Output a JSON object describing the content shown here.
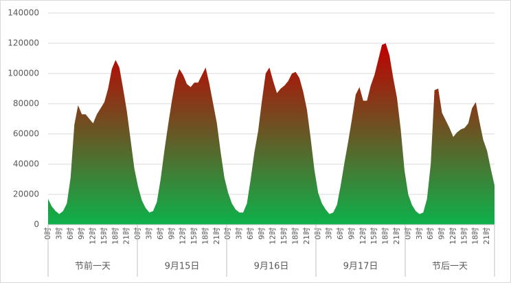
{
  "chart_data": {
    "type": "area",
    "categories": [
      "0时",
      null,
      null,
      "3时",
      null,
      null,
      "6时",
      null,
      null,
      "9时",
      null,
      null,
      "12时",
      null,
      null,
      "15时",
      null,
      null,
      "18时",
      null,
      null,
      "21时",
      null,
      null,
      "0时",
      null,
      null,
      "3时",
      null,
      null,
      "6时",
      null,
      null,
      "9时",
      null,
      null,
      "12时",
      null,
      null,
      "15时",
      null,
      null,
      "18时",
      null,
      null,
      "21时",
      null,
      null,
      "0时",
      null,
      null,
      "3时",
      null,
      null,
      "6时",
      null,
      null,
      "9时",
      null,
      null,
      "12时",
      null,
      null,
      "15时",
      null,
      null,
      "18时",
      null,
      null,
      "21时",
      null,
      null,
      "0时",
      null,
      null,
      "3时",
      null,
      null,
      "6时",
      null,
      null,
      "9时",
      null,
      null,
      "12时",
      null,
      null,
      "15时",
      null,
      null,
      "18时",
      null,
      null,
      "21时",
      null,
      null,
      "0时",
      null,
      null,
      "3时",
      null,
      null,
      "6时",
      null,
      null,
      "9时",
      null,
      null,
      "12时",
      null,
      null,
      "15时",
      null,
      null,
      "18时",
      null,
      null,
      "21时",
      null,
      null
    ],
    "groups": [
      "节前一天",
      "9月15日",
      "9月16日",
      "9月17日",
      "节后一天"
    ],
    "values": [
      17000,
      12000,
      9000,
      7000,
      9000,
      14000,
      31000,
      66000,
      79000,
      73000,
      73000,
      70000,
      67000,
      73000,
      77000,
      81000,
      90000,
      103000,
      109000,
      104000,
      90000,
      75000,
      56000,
      37000,
      25000,
      16000,
      11000,
      8000,
      9000,
      15000,
      30000,
      49000,
      66000,
      82000,
      96000,
      103000,
      99000,
      93000,
      91000,
      94000,
      94000,
      99000,
      104000,
      93000,
      80000,
      67000,
      48000,
      31000,
      21000,
      14000,
      10000,
      8000,
      8000,
      14000,
      30000,
      48000,
      62000,
      82000,
      100000,
      104000,
      95000,
      87000,
      90000,
      92000,
      95000,
      100000,
      101000,
      97000,
      88000,
      76000,
      57000,
      36000,
      21000,
      14000,
      10000,
      7000,
      8000,
      13000,
      26000,
      41000,
      55000,
      70000,
      86000,
      91000,
      82000,
      82000,
      92000,
      99000,
      109000,
      119000,
      120000,
      112000,
      97000,
      84000,
      63000,
      36000,
      20000,
      13000,
      9000,
      7000,
      8000,
      17000,
      40000,
      89000,
      90000,
      74000,
      69000,
      64000,
      58000,
      61000,
      63000,
      64000,
      67000,
      77000,
      81000,
      68000,
      56000,
      49000,
      37000,
      26000
    ],
    "gradient": [
      "#0db14b",
      "#c00000"
    ],
    "ylim": [
      0,
      140000
    ],
    "yticks": [
      0,
      20000,
      40000,
      60000,
      80000,
      100000,
      120000,
      140000
    ],
    "grid": true
  }
}
